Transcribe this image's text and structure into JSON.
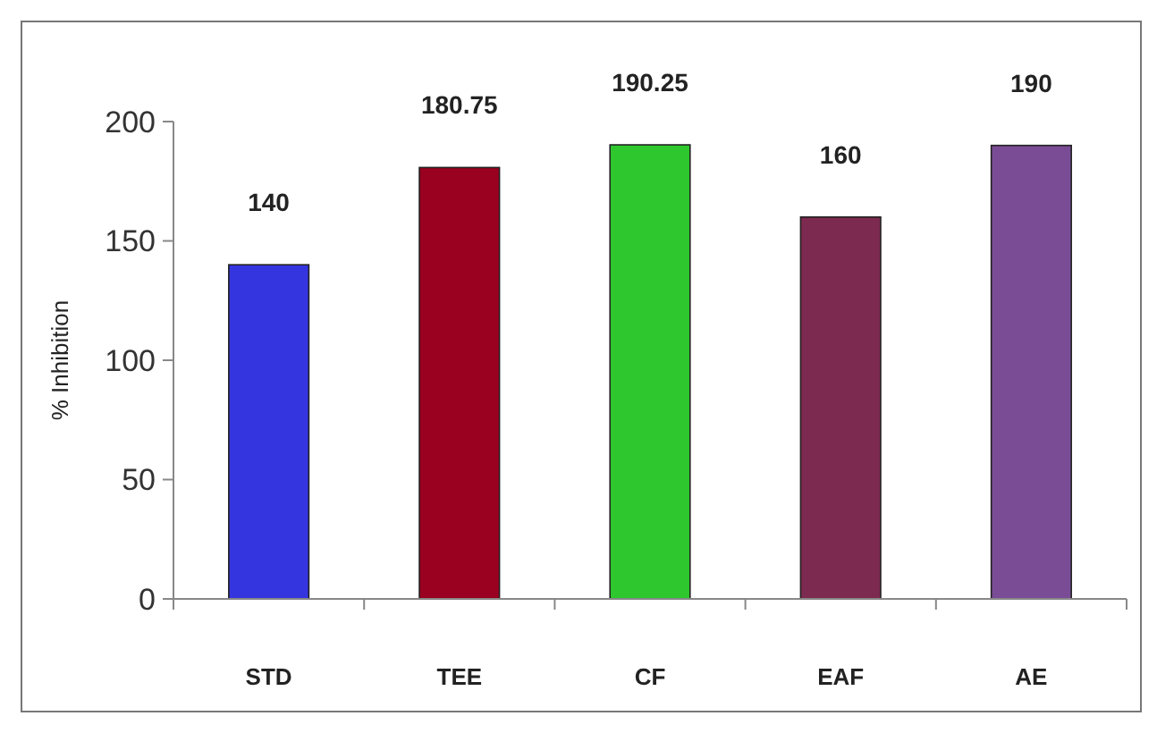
{
  "chart_data": {
    "type": "bar",
    "ylabel": "% Inhibition",
    "categories": [
      "STD",
      "TEE",
      "CF",
      "EAF",
      "AE"
    ],
    "values": [
      140,
      180.75,
      190.25,
      160,
      190
    ],
    "colors": [
      "#3535e0",
      "#9a0020",
      "#2ec82e",
      "#7d2a50",
      "#7a4c96"
    ],
    "ylim": [
      0,
      200
    ],
    "yticks": [
      0,
      50,
      100,
      150,
      200
    ],
    "grid": false,
    "data_labels": true
  }
}
